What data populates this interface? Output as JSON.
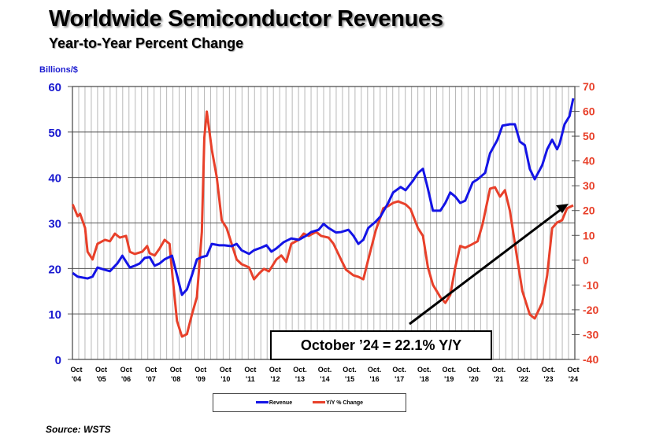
{
  "title": "Worldwide Semiconductor Revenues",
  "subtitle": "Year-to-Year Percent Change",
  "source": "Source: WSTS",
  "annotation": "October ’24 = 22.1% Y/Y",
  "colors": {
    "revenue": "#1414e6",
    "yoy": "#e8402a",
    "left_axis": "#1a1ad0",
    "right_axis": "#e8402a"
  },
  "chart_data": {
    "type": "line",
    "title": "Worldwide Semiconductor Revenues",
    "subtitle": "Year-to-Year Percent Change",
    "ylabel": "Billions/$",
    "ylim": [
      0,
      60
    ],
    "y_ticks": [
      "0",
      "10",
      "20",
      "30",
      "40",
      "50",
      "60"
    ],
    "y2lim": [
      -40,
      70
    ],
    "y2_ticks": [
      "-40",
      "-30",
      "-20",
      "-10",
      "0",
      "10",
      "20",
      "30",
      "40",
      "50",
      "60",
      "70"
    ],
    "xlim": [
      2004.75,
      2024.75
    ],
    "x_ticks": [
      {
        "l1": "Oct",
        "l2": "'04"
      },
      {
        "l1": "Oct",
        "l2": "'05"
      },
      {
        "l1": "Oct",
        "l2": "'06"
      },
      {
        "l1": "Oct",
        "l2": "'07"
      },
      {
        "l1": "Oct",
        "l2": "'08"
      },
      {
        "l1": "Oct",
        "l2": "'09"
      },
      {
        "l1": "Oct",
        "l2": "'10"
      },
      {
        "l1": "Oct",
        "l2": "'11"
      },
      {
        "l1": "Oct",
        "l2": "'12"
      },
      {
        "l1": "Oct.",
        "l2": "'13"
      },
      {
        "l1": "Oct.",
        "l2": "'14"
      },
      {
        "l1": "Oct.",
        "l2": "'15"
      },
      {
        "l1": "Oct.",
        "l2": "'16"
      },
      {
        "l1": "Oct.",
        "l2": "'17"
      },
      {
        "l1": "Oct.",
        "l2": "'18"
      },
      {
        "l1": "Oct.",
        "l2": "'19"
      },
      {
        "l1": "Oct.",
        "l2": "'20"
      },
      {
        "l1": "Oct.",
        "l2": "'21"
      },
      {
        "l1": "Oct.",
        "l2": "'22"
      },
      {
        "l1": "Oct.",
        "l2": "'23"
      },
      {
        "l1": "Oct",
        "l2": "'24"
      }
    ],
    "grid": true,
    "legend_position": "bottom",
    "series": [
      {
        "name": "Revenue",
        "axis": "left",
        "x": [
          2004.6,
          2004.8,
          2005.2,
          2005.4,
          2005.6,
          2005.9,
          2006.1,
          2006.4,
          2006.6,
          2006.9,
          2007.1,
          2007.3,
          2007.5,
          2007.7,
          2007.9,
          2008.1,
          2008.3,
          2008.6,
          2008.8,
          2009.0,
          2009.2,
          2009.4,
          2009.6,
          2009.8,
          2010.0,
          2010.2,
          2010.5,
          2010.7,
          2011.0,
          2011.2,
          2011.4,
          2011.7,
          2011.9,
          2012.2,
          2012.4,
          2012.6,
          2012.8,
          2013.1,
          2013.4,
          2013.7,
          2014.0,
          2014.2,
          2014.5,
          2014.7,
          2014.9,
          2015.2,
          2015.4,
          2015.7,
          2015.9,
          2016.1,
          2016.3,
          2016.5,
          2016.8,
          2017.0,
          2017.3,
          2017.5,
          2017.8,
          2018.0,
          2018.3,
          2018.5,
          2018.7,
          2018.9,
          2019.1,
          2019.4,
          2019.6,
          2019.8,
          2020.0,
          2020.2,
          2020.4,
          2020.7,
          2020.9,
          2021.2,
          2021.4,
          2021.7,
          2021.9,
          2022.2,
          2022.4,
          2022.6,
          2022.8,
          2023.0,
          2023.2,
          2023.5,
          2023.7,
          2023.9,
          2024.1,
          2024.2,
          2024.4,
          2024.6,
          2024.75
        ],
        "y": [
          19,
          18.2,
          17.8,
          18.2,
          20.2,
          19.7,
          19.4,
          21.1,
          22.8,
          20.2,
          20.6,
          21.1,
          22.3,
          22.5,
          20.6,
          21.1,
          22,
          22.8,
          18.5,
          14.2,
          15.4,
          18.5,
          22,
          22.5,
          22.8,
          25.4,
          25.1,
          25.1,
          24.9,
          25.4,
          24,
          23.2,
          24,
          24.6,
          25.1,
          23.7,
          24.4,
          25.8,
          26.6,
          26.3,
          27.2,
          28,
          28.5,
          29.8,
          28.9,
          27.9,
          28,
          28.5,
          27.2,
          25.4,
          26.3,
          28.9,
          30.3,
          31.5,
          34.4,
          36.7,
          37.9,
          37.2,
          39.3,
          41,
          41.9,
          37.5,
          32.7,
          32.7,
          34.4,
          36.7,
          35.8,
          34.4,
          34.9,
          38.9,
          39.6,
          41,
          45.3,
          48.3,
          51.4,
          51.7,
          51.7,
          47.9,
          47.1,
          41.9,
          39.6,
          42.7,
          46.2,
          48.3,
          46.2,
          47.4,
          51.7,
          53.5,
          57.4
        ]
      },
      {
        "name": "Y/Y % Change",
        "axis": "right",
        "x": [
          2004.6,
          2004.8,
          2004.9,
          2005.1,
          2005.2,
          2005.4,
          2005.6,
          2005.9,
          2006.1,
          2006.3,
          2006.5,
          2006.75,
          2006.9,
          2007.1,
          2007.4,
          2007.6,
          2007.7,
          2007.9,
          2008.1,
          2008.3,
          2008.5,
          2008.6,
          2008.8,
          2009.0,
          2009.2,
          2009.4,
          2009.6,
          2009.8,
          2009.9,
          2010.0,
          2010.2,
          2010.4,
          2010.6,
          2010.8,
          2011.0,
          2011.2,
          2011.4,
          2011.7,
          2011.9,
          2012.1,
          2012.3,
          2012.5,
          2012.8,
          2013.0,
          2013.2,
          2013.4,
          2013.7,
          2013.9,
          2014.1,
          2014.4,
          2014.6,
          2014.9,
          2015.1,
          2015.4,
          2015.6,
          2015.9,
          2016.1,
          2016.3,
          2016.5,
          2016.8,
          2017.0,
          2017.1,
          2017.3,
          2017.5,
          2017.7,
          2018.0,
          2018.2,
          2018.5,
          2018.7,
          2018.9,
          2019.1,
          2019.4,
          2019.6,
          2019.8,
          2020.0,
          2020.2,
          2020.4,
          2020.6,
          2020.9,
          2021.1,
          2021.4,
          2021.6,
          2021.8,
          2022.0,
          2022.2,
          2022.5,
          2022.7,
          2023.0,
          2023.2,
          2023.5,
          2023.7,
          2023.9,
          2024.1,
          2024.3,
          2024.5,
          2024.75
        ],
        "y": [
          22.5,
          17.7,
          18.7,
          13,
          3.4,
          0.3,
          6.6,
          8.2,
          7.6,
          10.7,
          9.1,
          9.8,
          3.4,
          2.5,
          3.4,
          5.7,
          2.8,
          1.9,
          4.7,
          8.2,
          6.6,
          -4.5,
          -24.5,
          -30.8,
          -29.8,
          -21.9,
          -14.9,
          11.4,
          49.4,
          59.9,
          44.6,
          33.5,
          16.1,
          12.9,
          6.6,
          0.3,
          -1.6,
          -2.9,
          -7.7,
          -5.4,
          -3.5,
          -4.5,
          0.3,
          1.9,
          -0.7,
          6.6,
          8.2,
          10.7,
          9.8,
          11.4,
          9.8,
          9.1,
          6.6,
          0.3,
          -3.8,
          -6.1,
          -6.7,
          -7.7,
          0.3,
          12,
          17.7,
          20.9,
          21.8,
          23.1,
          23.7,
          22.5,
          20.6,
          12.9,
          9.8,
          -2.9,
          -9.9,
          -14.9,
          -17.2,
          -14,
          -2.9,
          5.7,
          5,
          6,
          7.6,
          14.5,
          28.8,
          29.4,
          25.6,
          28.2,
          19.9,
          0.3,
          -12.4,
          -21.9,
          -23.5,
          -17.2,
          -6.1,
          12.9,
          15.2,
          16.1,
          20.9,
          22.1
        ]
      }
    ],
    "annotations": [
      "October ’24 = 22.1% Y/Y"
    ]
  }
}
